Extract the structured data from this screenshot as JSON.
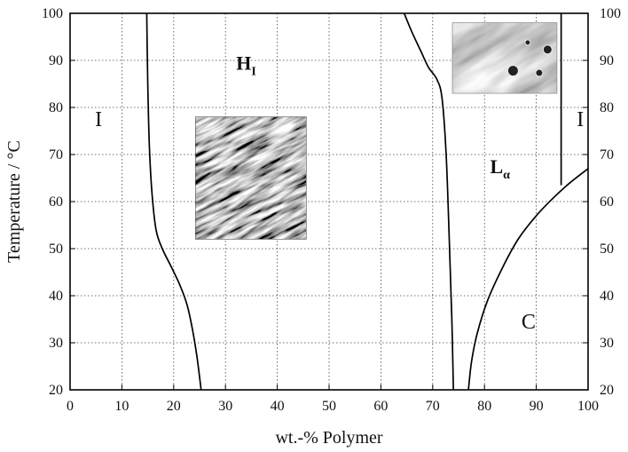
{
  "chart_data": {
    "type": "line",
    "title": "",
    "xlabel": "wt.-% Polymer",
    "ylabel": "Temperature / °C",
    "xlim": [
      0,
      100
    ],
    "ylim": [
      20,
      100
    ],
    "xticks": [
      0,
      10,
      20,
      30,
      40,
      50,
      60,
      70,
      80,
      90,
      100
    ],
    "yticks": [
      20,
      30,
      40,
      50,
      60,
      70,
      80,
      90,
      100
    ],
    "grid": true,
    "phase_labels": [
      {
        "text": "I",
        "x": 5.5,
        "y": 76
      },
      {
        "text": "H",
        "sub": "I",
        "x": 34,
        "y": 88
      },
      {
        "text": "L",
        "sub": "α",
        "x": 83,
        "y": 66
      },
      {
        "text": "I",
        "x": 98.5,
        "y": 76
      },
      {
        "text": "C",
        "x": 88.5,
        "y": 33
      }
    ],
    "series": [
      {
        "values": [
          [
            14.8,
            100
          ],
          [
            15.0,
            85
          ],
          [
            15.3,
            72
          ],
          [
            15.8,
            62
          ],
          [
            16.6,
            54
          ],
          [
            17.8,
            50
          ],
          [
            19.6,
            46
          ],
          [
            21.3,
            42
          ],
          [
            22.6,
            38
          ],
          [
            23.6,
            33
          ],
          [
            24.5,
            27
          ],
          [
            25.3,
            20
          ]
        ]
      },
      {
        "values": [
          [
            64.5,
            100
          ],
          [
            66.0,
            96
          ],
          [
            67.7,
            92
          ],
          [
            69.2,
            88.5
          ],
          [
            70.8,
            86
          ],
          [
            71.8,
            82
          ],
          [
            72.6,
            70
          ],
          [
            73.2,
            52
          ],
          [
            73.7,
            35
          ],
          [
            74.0,
            20
          ]
        ]
      },
      {
        "values": [
          [
            94.8,
            100
          ],
          [
            94.8,
            63.5
          ]
        ]
      },
      {
        "values": [
          [
            76.9,
            20
          ],
          [
            77.5,
            26
          ],
          [
            78.6,
            32
          ],
          [
            80.6,
            39
          ],
          [
            83.5,
            46
          ],
          [
            86.5,
            52
          ],
          [
            90.0,
            57
          ],
          [
            93.5,
            61
          ],
          [
            96.5,
            64
          ],
          [
            100,
            67
          ]
        ]
      }
    ],
    "insets": [
      {
        "texture": "fan-like birefringent streaks",
        "x_range": [
          24.2,
          45.6
        ],
        "y_range": [
          52,
          78
        ]
      },
      {
        "texture": "smooth birefringent domains with droplets",
        "x_range": [
          73.8,
          94
        ],
        "y_range": [
          83,
          98
        ]
      }
    ]
  }
}
